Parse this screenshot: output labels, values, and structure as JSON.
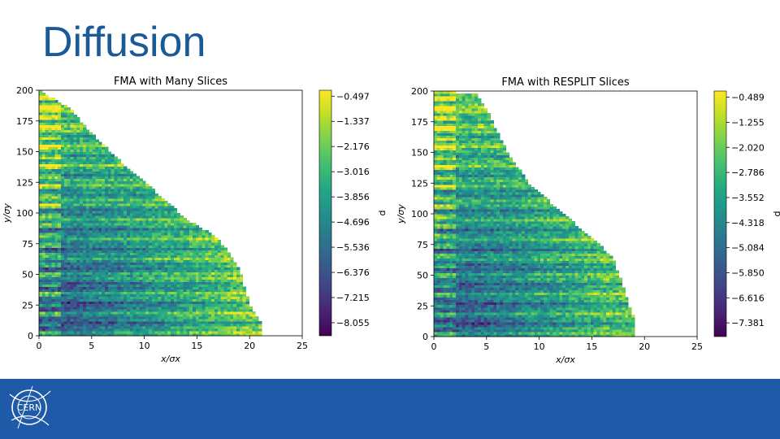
{
  "slide": {
    "title": "Diffusion"
  },
  "footer": {
    "logo_text": "CERN",
    "background": "#1e5aa8"
  },
  "chart_data": [
    {
      "type": "heatmap",
      "title": "FMA with Many Slices",
      "xlabel": "x/σx",
      "ylabel": "y/σy",
      "xlim": [
        0,
        25
      ],
      "ylim": [
        0,
        200
      ],
      "xticks": [
        0,
        5,
        10,
        15,
        20,
        25
      ],
      "yticks": [
        0,
        25,
        50,
        75,
        100,
        125,
        150,
        175,
        200
      ],
      "colorbar": {
        "label": "d",
        "ticks": [
          "−0.497",
          "−1.337",
          "−2.176",
          "−3.016",
          "−3.856",
          "−4.696",
          "−5.536",
          "−6.376",
          "−7.215",
          "−8.055"
        ],
        "range": [
          -8.49,
          -0.3
        ]
      },
      "colormap": "viridis",
      "boundary": [
        [
          0,
          200
        ],
        [
          3,
          185
        ],
        [
          5,
          165
        ],
        [
          8,
          140
        ],
        [
          11,
          118
        ],
        [
          14,
          95
        ],
        [
          17,
          80
        ],
        [
          19,
          55
        ],
        [
          20,
          25
        ],
        [
          21,
          12
        ],
        [
          21,
          0
        ]
      ]
    },
    {
      "type": "heatmap",
      "title": "FMA with RESPLIT Slices",
      "xlabel": "x/σx",
      "ylabel": "y/σy",
      "xlim": [
        0,
        25
      ],
      "ylim": [
        0,
        200
      ],
      "xticks": [
        0,
        5,
        10,
        15,
        20,
        25
      ],
      "yticks": [
        0,
        25,
        50,
        75,
        100,
        125,
        150,
        175,
        200
      ],
      "colorbar": {
        "label": "d",
        "ticks": [
          "−0.489",
          "−1.255",
          "−2.020",
          "−2.786",
          "−3.552",
          "−4.318",
          "−5.084",
          "−5.850",
          "−6.616",
          "−7.381"
        ],
        "range": [
          -7.8,
          -0.3
        ]
      },
      "colormap": "viridis",
      "boundary": [
        [
          0,
          200
        ],
        [
          4,
          198
        ],
        [
          5,
          185
        ],
        [
          7,
          150
        ],
        [
          9,
          125
        ],
        [
          11,
          110
        ],
        [
          13,
          95
        ],
        [
          15,
          80
        ],
        [
          17,
          65
        ],
        [
          18,
          40
        ],
        [
          19,
          15
        ],
        [
          19,
          0
        ]
      ]
    }
  ]
}
